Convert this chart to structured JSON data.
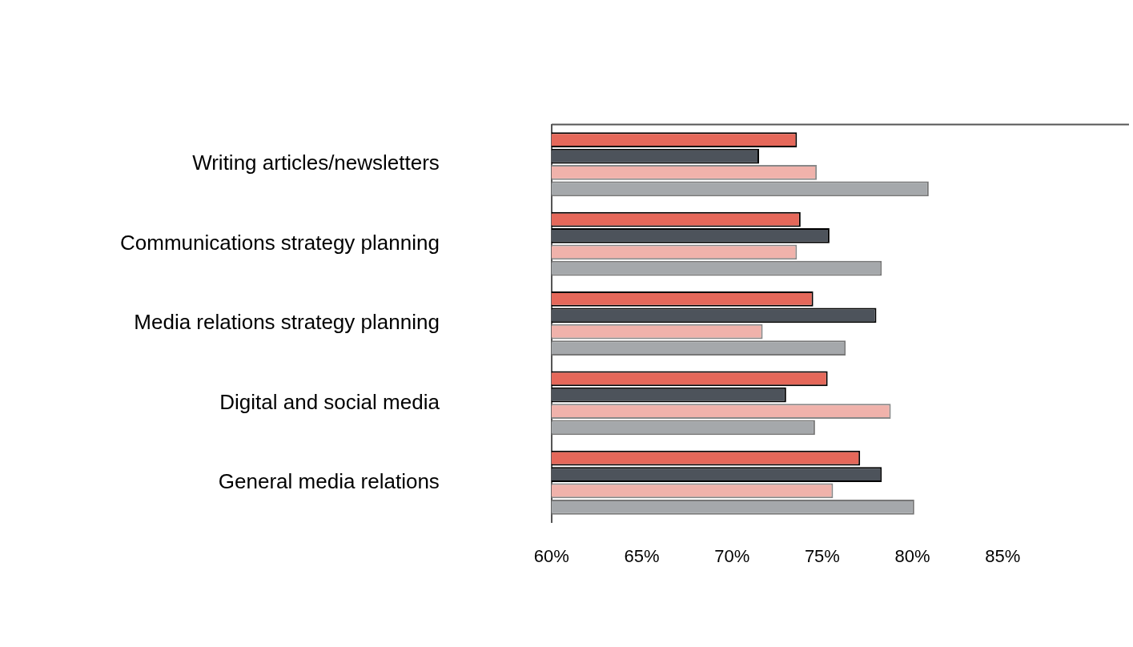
{
  "chart_data": {
    "type": "bar",
    "orientation": "horizontal",
    "categories": [
      "Writing articles/newsletters",
      "Communications strategy planning",
      "Media relations strategy planning",
      "Digital and social media",
      "General media relations"
    ],
    "series": [
      {
        "color": "#e5685a",
        "values": [
          73.6,
          73.8,
          74.5,
          75.3,
          77.1
        ]
      },
      {
        "color": "#4d535b",
        "values": [
          71.5,
          75.4,
          78.0,
          73.0,
          78.3
        ]
      },
      {
        "color": "#f0b2ab",
        "values": [
          74.7,
          73.6,
          71.7,
          78.8,
          75.6
        ]
      },
      {
        "color": "#a5a8ab",
        "values": [
          80.9,
          78.3,
          76.3,
          74.6,
          80.1
        ]
      }
    ],
    "xlim": [
      60,
      92
    ],
    "xticks": [
      {
        "value": 60,
        "label": "60%"
      },
      {
        "value": 65,
        "label": "65%"
      },
      {
        "value": 70,
        "label": "70%"
      },
      {
        "value": 75,
        "label": "75%"
      },
      {
        "value": 80,
        "label": "80%"
      },
      {
        "value": 85,
        "label": "85%"
      }
    ],
    "grid": false,
    "legend": false
  }
}
